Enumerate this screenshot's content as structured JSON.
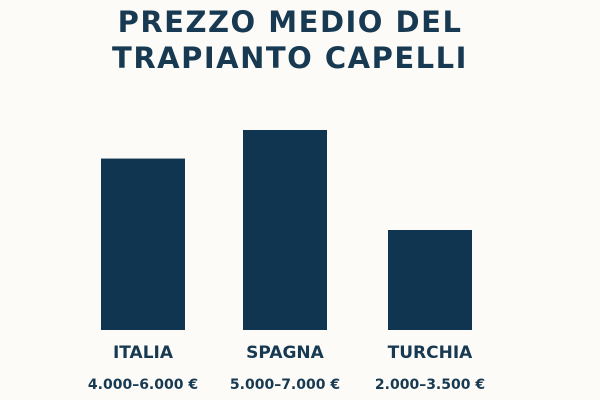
{
  "chart_data": {
    "type": "bar",
    "title": "PREZZO MEDIO DEL TRAPIANTO CAPELLI",
    "categories": [
      "ITALIA",
      "SPAGNA",
      "TURCHIA"
    ],
    "values": [
      6000,
      7000,
      3500
    ],
    "value_labels": [
      "4.000–6.000 €",
      "5.000–7.000 €",
      "2.000–3.500 €"
    ],
    "color": "#0f3550"
  }
}
